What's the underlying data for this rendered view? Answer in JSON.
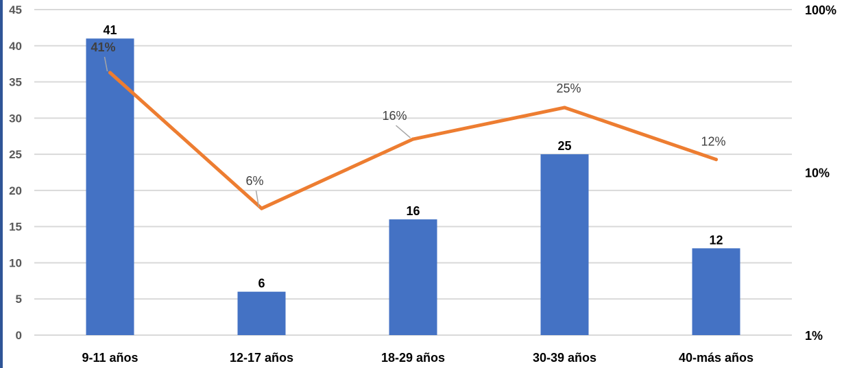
{
  "chart_data": {
    "type": "bar",
    "categories": [
      "9-11 años",
      "12-17 años",
      "18-29 años",
      "30-39 años",
      "40-más años"
    ],
    "series": [
      {
        "chart_type": "bar",
        "axis": "left",
        "color": "#4472c4",
        "values": [
          41,
          6,
          16,
          25,
          12
        ],
        "labels": [
          "41",
          "6",
          "16",
          "25",
          "12"
        ]
      },
      {
        "chart_type": "line",
        "axis": "right",
        "color": "#ed7d31",
        "values": [
          41,
          6,
          16,
          25,
          12
        ],
        "labels": [
          "41%",
          "6%",
          "16%",
          "25%",
          "12%"
        ]
      }
    ],
    "y_left": {
      "min": 0,
      "max": 45,
      "ticks": [
        "0",
        "5",
        "10",
        "15",
        "20",
        "25",
        "30",
        "35",
        "40",
        "45"
      ]
    },
    "y_right": {
      "scale": "log",
      "min": 1,
      "max": 100,
      "ticks": [
        "1%",
        "10%",
        "100%"
      ]
    },
    "grid": true,
    "legend": "none",
    "colors": {
      "gridline": "#d9d9d9",
      "frame_edge": "#2f5597"
    }
  }
}
